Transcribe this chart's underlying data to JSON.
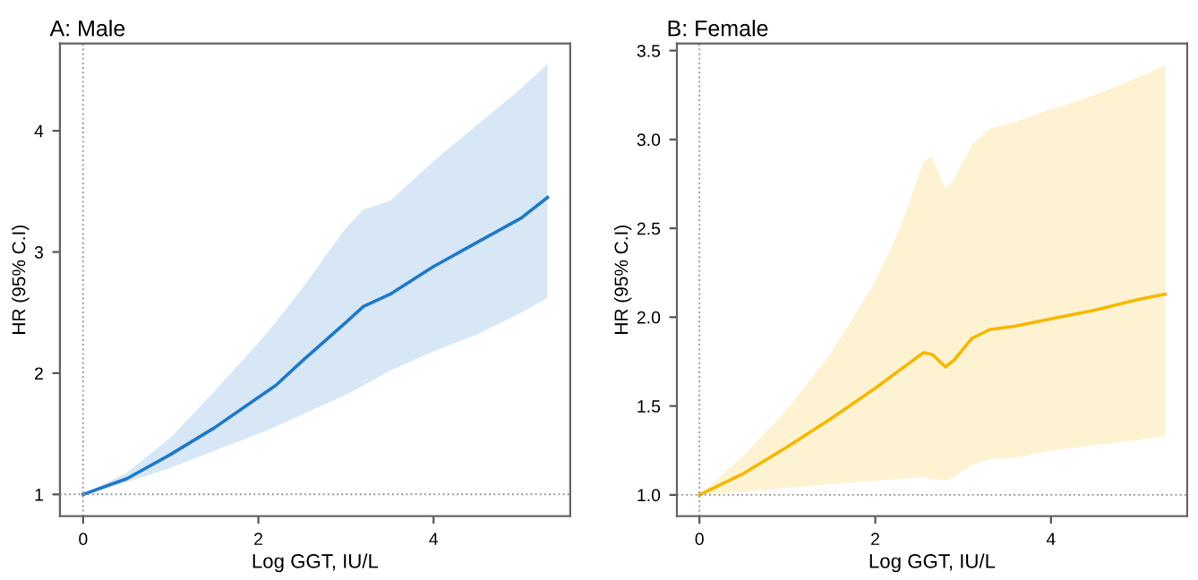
{
  "chart_data": [
    {
      "type": "line",
      "title": "A: Male",
      "xlabel": "Log GGT, IU/L",
      "ylabel": "HR (95% C.I)",
      "xlim": [
        -0.265,
        5.56
      ],
      "ylim": [
        0.82,
        4.72
      ],
      "xticks": [
        0,
        2,
        4
      ],
      "yticks": [
        1,
        2,
        3,
        4
      ],
      "grid": false,
      "legend": false,
      "ref_lines": [
        {
          "axis": "x",
          "value": 0,
          "line_style": "dotted",
          "color": "#999999"
        },
        {
          "axis": "y",
          "value": 1,
          "line_style": "dotted",
          "color": "#999999"
        }
      ],
      "series": [
        {
          "color": "#1f78c8",
          "x": [
            0,
            0.5,
            1,
            1.5,
            2,
            2.2,
            2.5,
            3,
            3.2,
            3.5,
            4,
            4.5,
            5,
            5.3
          ],
          "values": [
            1.0,
            1.13,
            1.33,
            1.55,
            1.8,
            1.9,
            2.1,
            2.42,
            2.55,
            2.65,
            2.88,
            3.08,
            3.28,
            3.45
          ],
          "lower": [
            1.0,
            1.1,
            1.22,
            1.36,
            1.5,
            1.56,
            1.66,
            1.82,
            1.9,
            2.02,
            2.18,
            2.32,
            2.5,
            2.62
          ],
          "upper": [
            1.0,
            1.18,
            1.47,
            1.85,
            2.25,
            2.42,
            2.7,
            3.2,
            3.35,
            3.42,
            3.75,
            4.05,
            4.35,
            4.55
          ]
        }
      ]
    },
    {
      "type": "line",
      "title": "B: Female",
      "xlabel": "Log GGT, IU/L",
      "ylabel": "HR (95% C.I)",
      "xlim": [
        -0.257,
        5.55
      ],
      "ylim": [
        0.88,
        3.54
      ],
      "xticks": [
        0,
        2,
        4
      ],
      "yticks": [
        {
          "value": 1,
          "label": "1.0"
        },
        {
          "value": 1.5,
          "label": "1.5"
        },
        {
          "value": 2,
          "label": "2.0"
        },
        {
          "value": 2.5,
          "label": "2.5"
        },
        {
          "value": 3,
          "label": "3.0"
        },
        {
          "value": 3.5,
          "label": "3.5"
        }
      ],
      "grid": false,
      "legend": false,
      "ref_lines": [
        {
          "axis": "x",
          "value": 0,
          "line_style": "dotted",
          "color": "#999999"
        },
        {
          "axis": "y",
          "value": 1,
          "line_style": "dotted",
          "color": "#999999"
        }
      ],
      "series": [
        {
          "color": "#f5b800",
          "x": [
            0,
            0.5,
            1,
            1.5,
            2,
            2.3,
            2.55,
            2.65,
            2.8,
            2.9,
            3.1,
            3.3,
            3.6,
            4,
            4.5,
            5,
            5.3
          ],
          "values": [
            1.0,
            1.12,
            1.27,
            1.43,
            1.6,
            1.71,
            1.8,
            1.79,
            1.72,
            1.76,
            1.88,
            1.93,
            1.95,
            1.99,
            2.04,
            2.1,
            2.13
          ],
          "lower": [
            1.0,
            1.02,
            1.04,
            1.06,
            1.08,
            1.09,
            1.1,
            1.09,
            1.08,
            1.1,
            1.17,
            1.2,
            1.21,
            1.25,
            1.28,
            1.31,
            1.33
          ],
          "upper": [
            1.0,
            1.22,
            1.48,
            1.8,
            2.2,
            2.52,
            2.88,
            2.9,
            2.72,
            2.78,
            2.97,
            3.06,
            3.1,
            3.17,
            3.25,
            3.35,
            3.42
          ]
        }
      ]
    }
  ]
}
